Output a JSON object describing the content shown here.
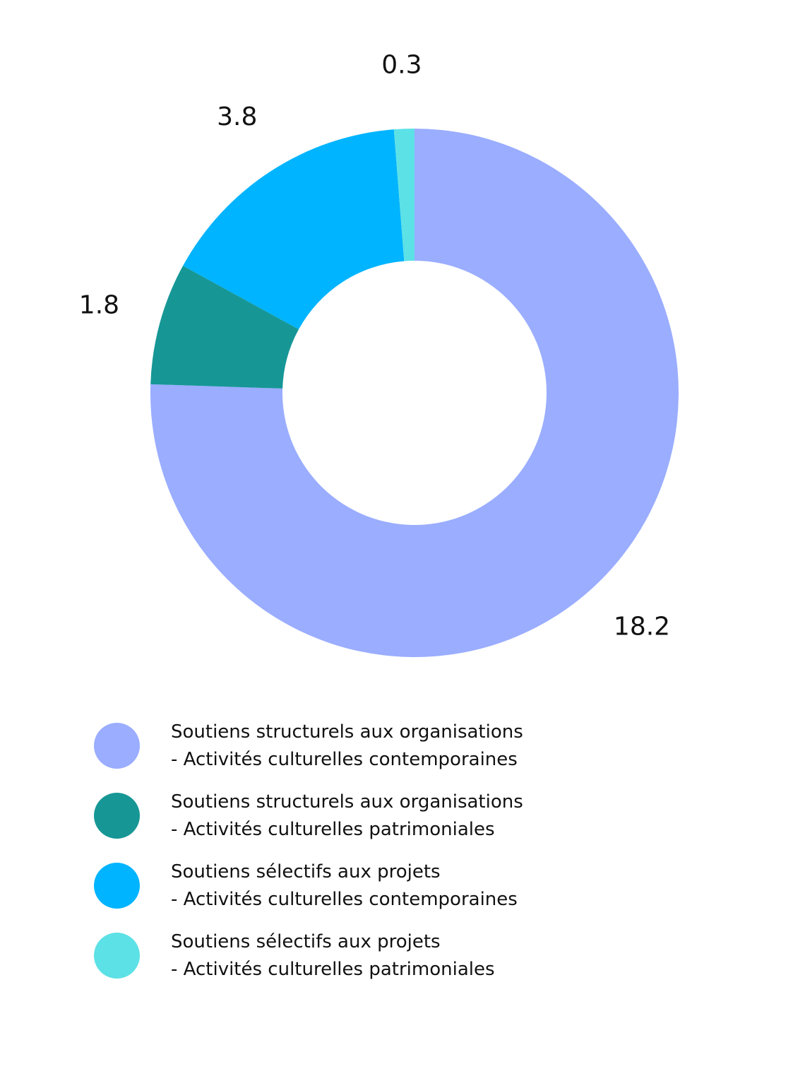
{
  "chart_data": {
    "type": "pie",
    "donut": true,
    "title": "",
    "legend_position": "bottom",
    "series": [
      {
        "name_lines": [
          "Soutiens structurels aux organisations",
          "- Activités culturelles contemporaines"
        ],
        "value": 18.2,
        "label": "18.2",
        "color": "#9AADFF"
      },
      {
        "name_lines": [
          "Soutiens structurels aux organisations",
          "- Activités culturelles patrimoniales"
        ],
        "value": 1.8,
        "label": "1.8",
        "color": "#169796"
      },
      {
        "name_lines": [
          "Soutiens sélectifs aux projets",
          "- Activités culturelles contemporaines"
        ],
        "value": 3.8,
        "label": "3.8",
        "color": "#00B4FF"
      },
      {
        "name_lines": [
          "Soutiens sélectifs aux projets",
          "- Activités culturelles patrimoniales"
        ],
        "value": 0.3,
        "label": "0.3",
        "color": "#5CE1E6"
      }
    ]
  }
}
